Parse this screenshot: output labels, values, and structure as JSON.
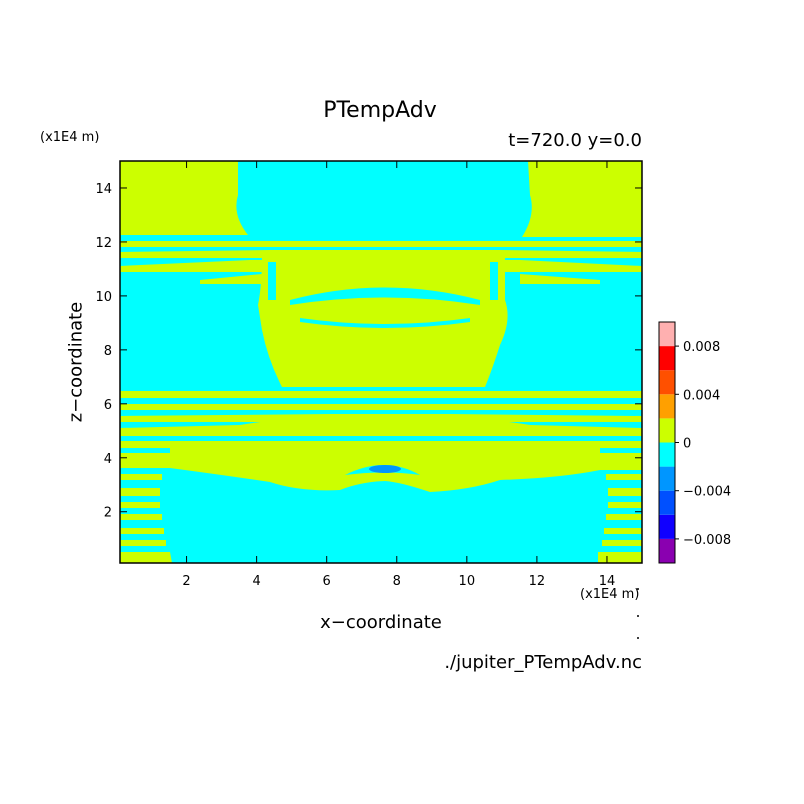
{
  "chart_data": {
    "type": "heatmap",
    "title": "PTempAdv",
    "time_label": "t=720.0  y=0.0",
    "xlabel": "x−coordinate",
    "ylabel": "z−coordinate",
    "x_unit": "(x1E4 m)",
    "y_unit": "(x1E4 m)",
    "xlim": [
      0.1,
      15
    ],
    "ylim": [
      0.1,
      15
    ],
    "xticks": [
      2,
      4,
      6,
      8,
      10,
      12,
      14
    ],
    "yticks": [
      2,
      4,
      6,
      8,
      10,
      12,
      14
    ],
    "colorbar": {
      "levels": [
        -0.01,
        -0.008,
        -0.006,
        -0.004,
        -0.002,
        0,
        0.002,
        0.004,
        0.006,
        0.008,
        0.01
      ],
      "colors": [
        "#8a00b0",
        "#1000ff",
        "#0050ff",
        "#0096ff",
        "#00ffff",
        "#ccff00",
        "#ffa000",
        "#ff5000",
        "#ff0000",
        "#ffb0b0"
      ],
      "tick_labels": [
        "−0.008",
        "−0.004",
        "0",
        "0.004",
        "0.008"
      ],
      "tick_values": [
        -0.008,
        -0.004,
        0,
        0.004,
        0.008
      ]
    },
    "dominant_colors": {
      "positive_near_zero": "#ccff00",
      "negative_near_zero": "#00ffff",
      "negative_minimum": "#0096ff"
    }
  },
  "footer": {
    "filename": "./jupiter_PTempAdv.nc"
  }
}
